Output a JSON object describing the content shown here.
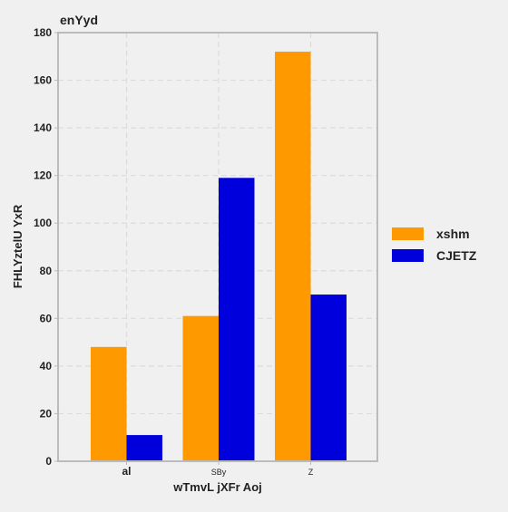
{
  "chart_data": {
    "type": "bar",
    "title": "enYyd",
    "xlabel": "wTmvL jXFr Aoj",
    "ylabel": "FHLYztelU YxR",
    "categories": [
      "al",
      "SBy",
      "Z"
    ],
    "series": [
      {
        "name": "xshm",
        "values": [
          48,
          61,
          172
        ],
        "color": "#ff9900"
      },
      {
        "name": "CJETZ",
        "values": [
          11,
          119,
          70
        ],
        "color": "#0000dd"
      }
    ],
    "ylim": [
      0,
      180
    ],
    "yticks": [
      0,
      20,
      40,
      60,
      80,
      100,
      120,
      140,
      160,
      180
    ],
    "grid": true,
    "legend_position": "right"
  }
}
